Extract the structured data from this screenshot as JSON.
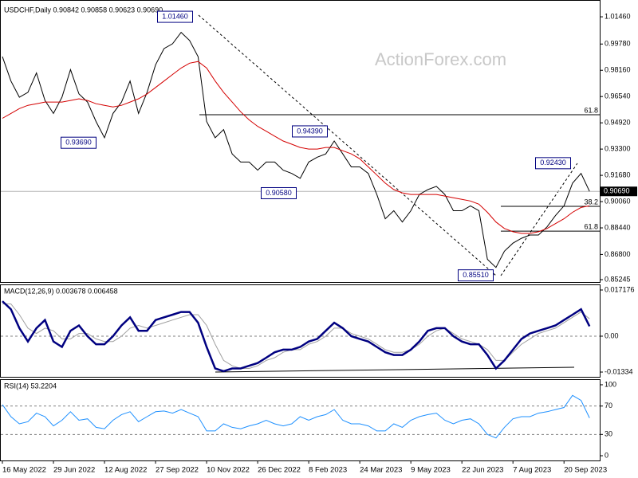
{
  "chart_data": [
    {
      "type": "line",
      "title": "USDCHF,Daily 0.90842 0.90858 0.90623 0.90690",
      "watermark": "ActionForex.com",
      "categories": [
        "16 May 2022",
        null,
        null,
        null,
        null,
        null,
        "29 Jun 2022",
        null,
        null,
        null,
        null,
        null,
        "12 Aug 2022",
        null,
        null,
        null,
        null,
        null,
        "27 Sep 2022",
        null,
        null,
        null,
        null,
        null,
        "10 Nov 2022",
        null,
        null,
        null,
        null,
        null,
        "26 Dec 2022",
        null,
        null,
        null,
        null,
        null,
        "8 Feb 2023",
        null,
        null,
        null,
        null,
        null,
        "24 Mar 2023",
        null,
        null,
        null,
        null,
        null,
        "9 May 2023",
        null,
        null,
        null,
        null,
        null,
        "22 Jun 2023",
        null,
        null,
        null,
        null,
        null,
        "7 Aug 2023",
        null,
        null,
        null,
        null,
        null,
        "20 Sep 2023",
        null,
        null,
        null
      ],
      "series": [
        {
          "color": "#000000",
          "values": [
            0.99,
            0.975,
            0.965,
            0.968,
            0.98,
            0.963,
            0.955,
            0.965,
            0.982,
            0.967,
            0.962,
            0.95,
            0.94,
            0.955,
            0.962,
            0.975,
            0.955,
            0.968,
            0.985,
            0.995,
            0.998,
            1.005,
            1.0,
            0.99,
            0.95,
            0.94,
            0.945,
            0.93,
            0.925,
            0.925,
            0.92,
            0.925,
            0.925,
            0.92,
            0.918,
            0.915,
            0.925,
            0.928,
            0.93,
            0.938,
            0.93,
            0.922,
            0.922,
            0.918,
            0.905,
            0.89,
            0.895,
            0.888,
            0.895,
            0.905,
            0.908,
            0.91,
            0.905,
            0.895,
            0.895,
            0.898,
            0.895,
            0.865,
            0.86,
            0.87,
            0.875,
            0.878,
            0.88,
            0.88,
            0.885,
            0.892,
            0.898,
            0.912,
            0.918,
            0.9069
          ]
        },
        {
          "color": "#d40000",
          "values": [
            0.952,
            0.955,
            0.958,
            0.96,
            0.961,
            0.962,
            0.962,
            0.962,
            0.963,
            0.964,
            0.963,
            0.961,
            0.96,
            0.959,
            0.96,
            0.962,
            0.964,
            0.967,
            0.971,
            0.975,
            0.979,
            0.983,
            0.986,
            0.987,
            0.983,
            0.975,
            0.968,
            0.962,
            0.956,
            0.951,
            0.947,
            0.944,
            0.941,
            0.938,
            0.936,
            0.934,
            0.933,
            0.933,
            0.934,
            0.934,
            0.932,
            0.93,
            0.927,
            0.922,
            0.917,
            0.912,
            0.908,
            0.906,
            0.905,
            0.905,
            0.905,
            0.905,
            0.904,
            0.903,
            0.902,
            0.901,
            0.899,
            0.894,
            0.888,
            0.884,
            0.882,
            0.881,
            0.881,
            0.882,
            0.884,
            0.887,
            0.89,
            0.894,
            0.897,
            0.898
          ]
        }
      ],
      "ylim": [
        0.851,
        1.0225
      ],
      "yticks": [
        {
          "value": 1.0146,
          "label": "1.01460"
        },
        {
          "value": 0.9978,
          "label": "0.99780"
        },
        {
          "value": 0.9816,
          "label": "0.98160"
        },
        {
          "value": 0.9654,
          "label": "0.96540"
        },
        {
          "value": 0.9492,
          "label": "0.94920"
        },
        {
          "value": 0.933,
          "label": "0.93300"
        },
        {
          "value": 0.9168,
          "label": "0.91680"
        },
        {
          "value": 0.9006,
          "label": "0.90060"
        },
        {
          "value": 0.8844,
          "label": "0.88440"
        },
        {
          "value": 0.868,
          "label": "0.86800"
        },
        0.85245
      ],
      "annotations": [
        {
          "value": 0.9369,
          "label": "0.93690"
        },
        {
          "value": 1.0146,
          "label": "1.01460"
        },
        {
          "value": 0.9058,
          "label": "0.90580"
        },
        {
          "value": 0.9439,
          "label": "0.94390"
        },
        {
          "value": 0.8551,
          "label": "0.85510"
        },
        {
          "value": 0.9243,
          "label": "0.92430"
        }
      ],
      "levels": [
        {
          "name": "61.8",
          "price": 0.9542
        },
        {
          "name": "38.2",
          "price": 0.8977
        },
        {
          "name": "61.8",
          "price": 0.8824
        }
      ],
      "last": {
        "value": 0.9069,
        "label": "0.90690"
      }
    },
    {
      "type": "line",
      "title": "MACD(12,26,9) 0.003678 0.006458",
      "grid": true,
      "series": [
        {
          "color": "#a0a0a0",
          "values": [
            0.012,
            0.012,
            0.008,
            0.003,
            0.001,
            0.003,
            0.002,
            -0.001,
            -0.001,
            0.001,
            0.001,
            -0.001,
            -0.002,
            -0.002,
            0,
            0.003,
            0.004,
            0.003,
            0.004,
            0.005,
            0.006,
            0.007,
            0.008,
            0.008,
            0.004,
            -0.003,
            -0.009,
            -0.011,
            -0.012,
            -0.012,
            -0.011,
            -0.009,
            -0.008,
            -0.006,
            -0.005,
            -0.005,
            -0.003,
            -0.002,
            0,
            0.003,
            0.003,
            0.001,
            0,
            -0.001,
            -0.003,
            -0.005,
            -0.006,
            -0.006,
            -0.005,
            -0.003,
            0,
            0.002,
            0.003,
            0.001,
            -0.001,
            -0.002,
            -0.003,
            -0.005,
            -0.009,
            -0.009,
            -0.006,
            -0.003,
            -0.001,
            0.001,
            0.002,
            0.003,
            0.005,
            0.007,
            0.009,
            0.006458
          ]
        },
        {
          "color": "#000080",
          "values": [
            0.013,
            0.01,
            0.003,
            -0.002,
            0.003,
            0.006,
            -0.002,
            -0.004,
            0.002,
            0.004,
            0,
            -0.003,
            -0.003,
            0,
            0.004,
            0.007,
            0.002,
            0.002,
            0.006,
            0.007,
            0.008,
            0.009,
            0.009,
            0.005,
            -0.004,
            -0.012,
            -0.013,
            -0.012,
            -0.012,
            -0.011,
            -0.01,
            -0.008,
            -0.006,
            -0.005,
            -0.005,
            -0.004,
            -0.002,
            -0.001,
            0.002,
            0.005,
            0.003,
            0,
            -0.001,
            -0.002,
            -0.004,
            -0.006,
            -0.007,
            -0.007,
            -0.005,
            -0.002,
            0.002,
            0.003,
            0.003,
            0,
            -0.002,
            -0.003,
            -0.003,
            -0.007,
            -0.012,
            -0.009,
            -0.005,
            -0.001,
            0.001,
            0.002,
            0.003,
            0.004,
            0.006,
            0.008,
            0.01,
            0.003678
          ]
        }
      ],
      "ylim": [
        -0.01511,
        0.01895
      ],
      "yticks": [
        0.017176,
        {
          "value": 0,
          "label": "0.00"
        },
        -0.01334
      ]
    },
    {
      "type": "line",
      "title": "RSI(14) 53.2204",
      "grid": true,
      "series": [
        {
          "color": "#1e90ff",
          "values": [
            72,
            55,
            45,
            48,
            60,
            55,
            42,
            50,
            62,
            50,
            52,
            40,
            38,
            50,
            58,
            62,
            48,
            55,
            62,
            63,
            60,
            65,
            60,
            55,
            35,
            35,
            45,
            40,
            38,
            42,
            45,
            50,
            45,
            42,
            45,
            55,
            50,
            55,
            58,
            65,
            50,
            45,
            45,
            42,
            35,
            35,
            45,
            40,
            50,
            55,
            58,
            60,
            50,
            45,
            50,
            52,
            45,
            30,
            25,
            40,
            52,
            55,
            55,
            60,
            62,
            65,
            68,
            85,
            78,
            53.2204
          ]
        }
      ],
      "ylim": [
        -6.7,
        106.7
      ],
      "yticks": [
        100,
        70,
        30,
        0
      ]
    }
  ]
}
